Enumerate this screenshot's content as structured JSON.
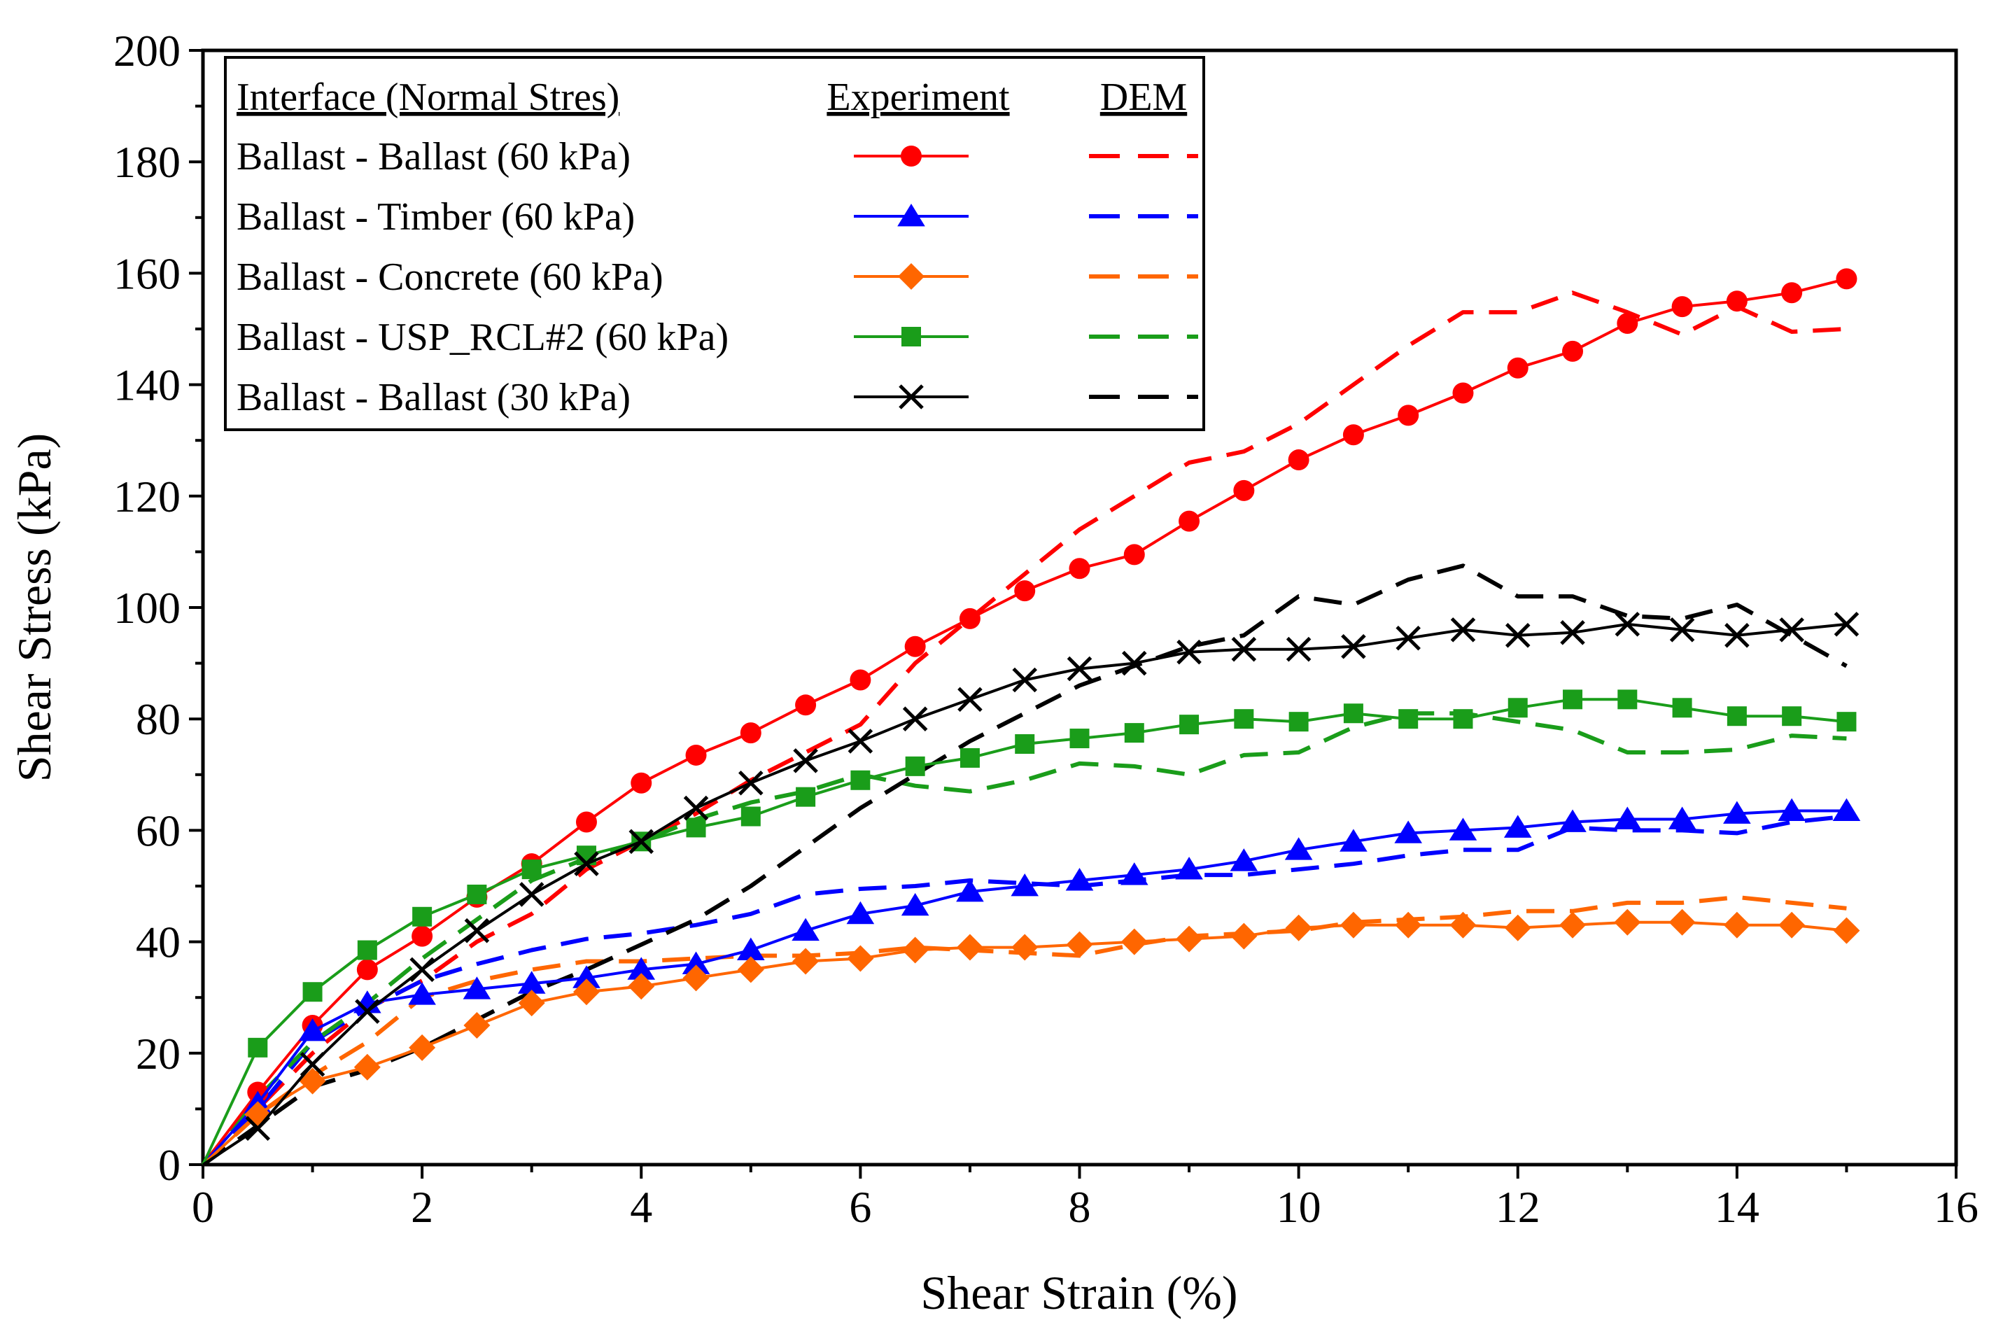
{
  "chart_data": {
    "type": "line",
    "xlabel": "Shear Strain (%)",
    "ylabel": "Shear Stress (kPa)",
    "xlim": [
      0,
      16
    ],
    "ylim": [
      0,
      200
    ],
    "xticks": [
      0,
      2,
      4,
      6,
      8,
      10,
      12,
      14,
      16
    ],
    "yticks": [
      0,
      20,
      40,
      60,
      80,
      100,
      120,
      140,
      160,
      180,
      200
    ],
    "grid": false,
    "legend": {
      "position": "top-left",
      "header": {
        "label": "Interface (Normal Stres)",
        "experiment": "Experiment",
        "dem": "DEM"
      }
    },
    "series": [
      {
        "name": "Ballast - Ballast (60 kPa)",
        "color": "#ff0000",
        "marker": "circle",
        "experiment": {
          "x": [
            0,
            0.5,
            1,
            1.5,
            2,
            2.5,
            3,
            3.5,
            4,
            4.5,
            5,
            5.5,
            6,
            6.5,
            7,
            7.5,
            8,
            8.5,
            9,
            9.5,
            10,
            10.5,
            11,
            11.5,
            12,
            12.5,
            13,
            13.5,
            14,
            14.5,
            15
          ],
          "y": [
            0,
            13,
            25,
            35,
            41,
            48,
            54,
            61.5,
            68.5,
            73.5,
            77.5,
            82.5,
            87,
            93,
            98,
            103,
            107,
            109.5,
            115.5,
            121,
            126.5,
            131,
            134.5,
            138.5,
            143,
            146,
            151,
            154,
            155,
            156.5,
            159
          ]
        },
        "dem": {
          "x": [
            0,
            0.5,
            1,
            1.5,
            2,
            2.5,
            3,
            3.5,
            4,
            4.5,
            5,
            5.5,
            6,
            6.5,
            7,
            7.5,
            8,
            8.5,
            9,
            9.5,
            10,
            10.5,
            11,
            11.5,
            12,
            12.5,
            13,
            13.5,
            14,
            14.5,
            15
          ],
          "y": [
            0,
            10,
            20,
            28,
            33,
            40,
            45,
            53,
            58,
            63,
            69,
            74,
            79,
            90,
            98,
            106,
            114,
            120,
            126,
            128,
            133,
            140,
            147,
            153,
            153,
            156.5,
            153,
            149,
            154,
            149.5,
            150
          ]
        }
      },
      {
        "name": "Ballast - Timber (60 kPa)",
        "color": "#0000ff",
        "marker": "triangle",
        "experiment": {
          "x": [
            0,
            0.5,
            1,
            1.5,
            2,
            2.5,
            3,
            3.5,
            4,
            4.5,
            5,
            5.5,
            6,
            6.5,
            7,
            7.5,
            8,
            8.5,
            9,
            9.5,
            10,
            10.5,
            11,
            11.5,
            12,
            12.5,
            13,
            13.5,
            14,
            14.5,
            15
          ],
          "y": [
            0,
            11,
            24,
            29,
            30.5,
            31.5,
            32.5,
            33.5,
            35,
            36,
            38.5,
            42,
            45,
            46.5,
            49,
            50,
            51,
            52,
            53,
            54.5,
            56.5,
            58,
            59.5,
            60,
            60.5,
            61.5,
            62,
            62,
            63,
            63.5,
            63.5
          ]
        },
        "dem": {
          "x": [
            0,
            0.5,
            1,
            1.5,
            2,
            2.5,
            3,
            3.5,
            4,
            4.5,
            5,
            5.5,
            6,
            6.5,
            7,
            7.5,
            8,
            8.5,
            9,
            9.5,
            10,
            10.5,
            11,
            11.5,
            12,
            12.5,
            13,
            13.5,
            14,
            14.5,
            15
          ],
          "y": [
            0,
            10,
            22,
            28,
            33,
            36,
            38.5,
            40.5,
            41.5,
            43,
            45,
            48.5,
            49.5,
            50,
            51,
            50.5,
            50,
            51,
            52,
            52,
            53,
            54,
            55.5,
            56.5,
            56.5,
            60.5,
            60,
            60,
            59.5,
            61.5,
            62.5
          ]
        }
      },
      {
        "name": "Ballast - Concrete (60 kPa)",
        "color": "#ff6600",
        "marker": "diamond",
        "experiment": {
          "x": [
            0,
            0.5,
            1,
            1.5,
            2,
            2.5,
            3,
            3.5,
            4,
            4.5,
            5,
            5.5,
            6,
            6.5,
            7,
            7.5,
            8,
            8.5,
            9,
            9.5,
            10,
            10.5,
            11,
            11.5,
            12,
            12.5,
            13,
            13.5,
            14,
            14.5,
            15
          ],
          "y": [
            0,
            9,
            15,
            17.5,
            21,
            25,
            29,
            31,
            32,
            33.5,
            35,
            36.5,
            37,
            38.5,
            39,
            39,
            39.5,
            40,
            40.5,
            41,
            42.5,
            43,
            43,
            43,
            42.5,
            43,
            43.5,
            43.5,
            43,
            43,
            42
          ]
        },
        "dem": {
          "x": [
            0,
            0.5,
            1,
            1.5,
            2,
            2.5,
            3,
            3.5,
            4,
            4.5,
            5,
            5.5,
            6,
            6.5,
            7,
            7.5,
            8,
            8.5,
            9,
            9.5,
            10,
            10.5,
            11,
            11.5,
            12,
            12.5,
            13,
            13.5,
            14,
            14.5,
            15
          ],
          "y": [
            0,
            9,
            16,
            22,
            30,
            33,
            35,
            36.5,
            36.5,
            37,
            37.5,
            37.5,
            38,
            39,
            38.5,
            38,
            37.5,
            39.5,
            41,
            41.5,
            42,
            43.5,
            44,
            44.5,
            45.5,
            45.5,
            47,
            47,
            48,
            47,
            46
          ]
        }
      },
      {
        "name": "Ballast - USP_RCL#2 (60 kPa)",
        "color": "#1a9d1a",
        "marker": "square",
        "experiment": {
          "x": [
            0,
            0.5,
            1,
            1.5,
            2,
            2.5,
            3,
            3.5,
            4,
            4.5,
            5,
            5.5,
            6,
            6.5,
            7,
            7.5,
            8,
            8.5,
            9,
            9.5,
            10,
            10.5,
            11,
            11.5,
            12,
            12.5,
            13,
            13.5,
            14,
            14.5,
            15
          ],
          "y": [
            0,
            21,
            31,
            38.5,
            44.5,
            48.5,
            53,
            55.5,
            58,
            60.5,
            62.5,
            66,
            69,
            71.5,
            73,
            75.5,
            76.5,
            77.5,
            79,
            80,
            79.5,
            81,
            80,
            80,
            82,
            83.5,
            83.5,
            82,
            80.5,
            80.5,
            79.5
          ]
        },
        "dem": {
          "x": [
            0,
            0.5,
            1,
            1.5,
            2,
            2.5,
            3,
            3.5,
            4,
            4.5,
            5,
            5.5,
            6,
            6.5,
            7,
            7.5,
            8,
            8.5,
            9,
            9.5,
            10,
            10.5,
            11,
            11.5,
            12,
            12.5,
            13,
            13.5,
            14,
            14.5,
            15
          ],
          "y": [
            0,
            12,
            22,
            29,
            37,
            44,
            51,
            55,
            58,
            62,
            65,
            67,
            70,
            68,
            67,
            69,
            72,
            71.5,
            70,
            73.5,
            74,
            78.5,
            81,
            81,
            79.5,
            78,
            74,
            74,
            74.5,
            77,
            76.5
          ]
        }
      },
      {
        "name": "Ballast - Ballast (30 kPa)",
        "color": "#000000",
        "marker": "x",
        "experiment": {
          "x": [
            0,
            0.5,
            1,
            1.5,
            2,
            2.5,
            3,
            3.5,
            4,
            4.5,
            5,
            5.5,
            6,
            6.5,
            7,
            7.5,
            8,
            8.5,
            9,
            9.5,
            10,
            10.5,
            11,
            11.5,
            12,
            12.5,
            13,
            13.5,
            14,
            14.5,
            15
          ],
          "y": [
            0,
            6.5,
            18,
            27.5,
            35,
            42,
            48.5,
            54,
            58,
            64,
            68.5,
            72.5,
            76,
            80,
            83.5,
            87,
            89,
            90,
            92,
            92.5,
            92.5,
            93,
            94.5,
            96,
            95,
            95.5,
            97,
            96,
            95,
            96,
            97
          ]
        },
        "dem": {
          "x": [
            0,
            0.5,
            1,
            1.5,
            2,
            2.5,
            3,
            3.5,
            4,
            4.5,
            5,
            5.5,
            6,
            6.5,
            7,
            7.5,
            8,
            8.5,
            9,
            9.5,
            10,
            10.5,
            11,
            11.5,
            12,
            12.5,
            13,
            13.5,
            14,
            14.5,
            15
          ],
          "y": [
            0,
            7,
            14,
            17,
            21,
            26,
            31,
            35,
            39.5,
            44,
            50,
            57,
            64,
            70,
            76,
            81,
            86,
            89.5,
            93,
            95,
            102,
            100.5,
            105,
            107.5,
            102,
            102,
            98.5,
            98,
            100.5,
            95,
            89.5
          ]
        }
      }
    ]
  }
}
